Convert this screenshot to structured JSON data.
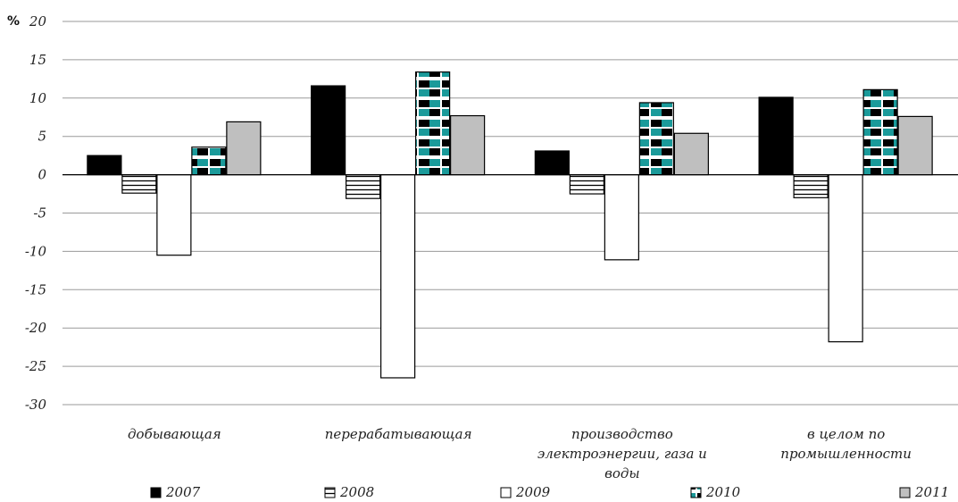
{
  "chart_data": {
    "type": "bar",
    "unit_label": "%",
    "ylim": [
      -30,
      20
    ],
    "yticks": [
      20,
      15,
      10,
      5,
      0,
      -5,
      -10,
      -15,
      -20,
      -25,
      -30
    ],
    "categories": [
      [
        "добывающая"
      ],
      [
        "перерабатывающая"
      ],
      [
        "производство",
        "электроэнергии, газа и",
        "воды"
      ],
      [
        "в целом по",
        "промышленности"
      ]
    ],
    "series": [
      {
        "name": "2007",
        "values": [
          2.5,
          11.6,
          3.1,
          10.1
        ],
        "fill": "#000000",
        "pattern": "solid"
      },
      {
        "name": "2008",
        "values": [
          -2.4,
          -3.1,
          -2.5,
          -3.0
        ],
        "fill": "#ffffff",
        "pattern": "hlines"
      },
      {
        "name": "2009",
        "values": [
          -10.5,
          -26.5,
          -11.1,
          -21.8
        ],
        "fill": "#ffffff",
        "pattern": "none"
      },
      {
        "name": "2010",
        "values": [
          3.6,
          13.4,
          9.4,
          11.1
        ],
        "fill": "#1a9a9a",
        "pattern": "checker"
      },
      {
        "name": "2011",
        "values": [
          6.9,
          7.7,
          5.4,
          7.6
        ],
        "fill": "#bfbfbf",
        "pattern": "solid"
      }
    ],
    "grid": true,
    "legend": "bottom"
  }
}
